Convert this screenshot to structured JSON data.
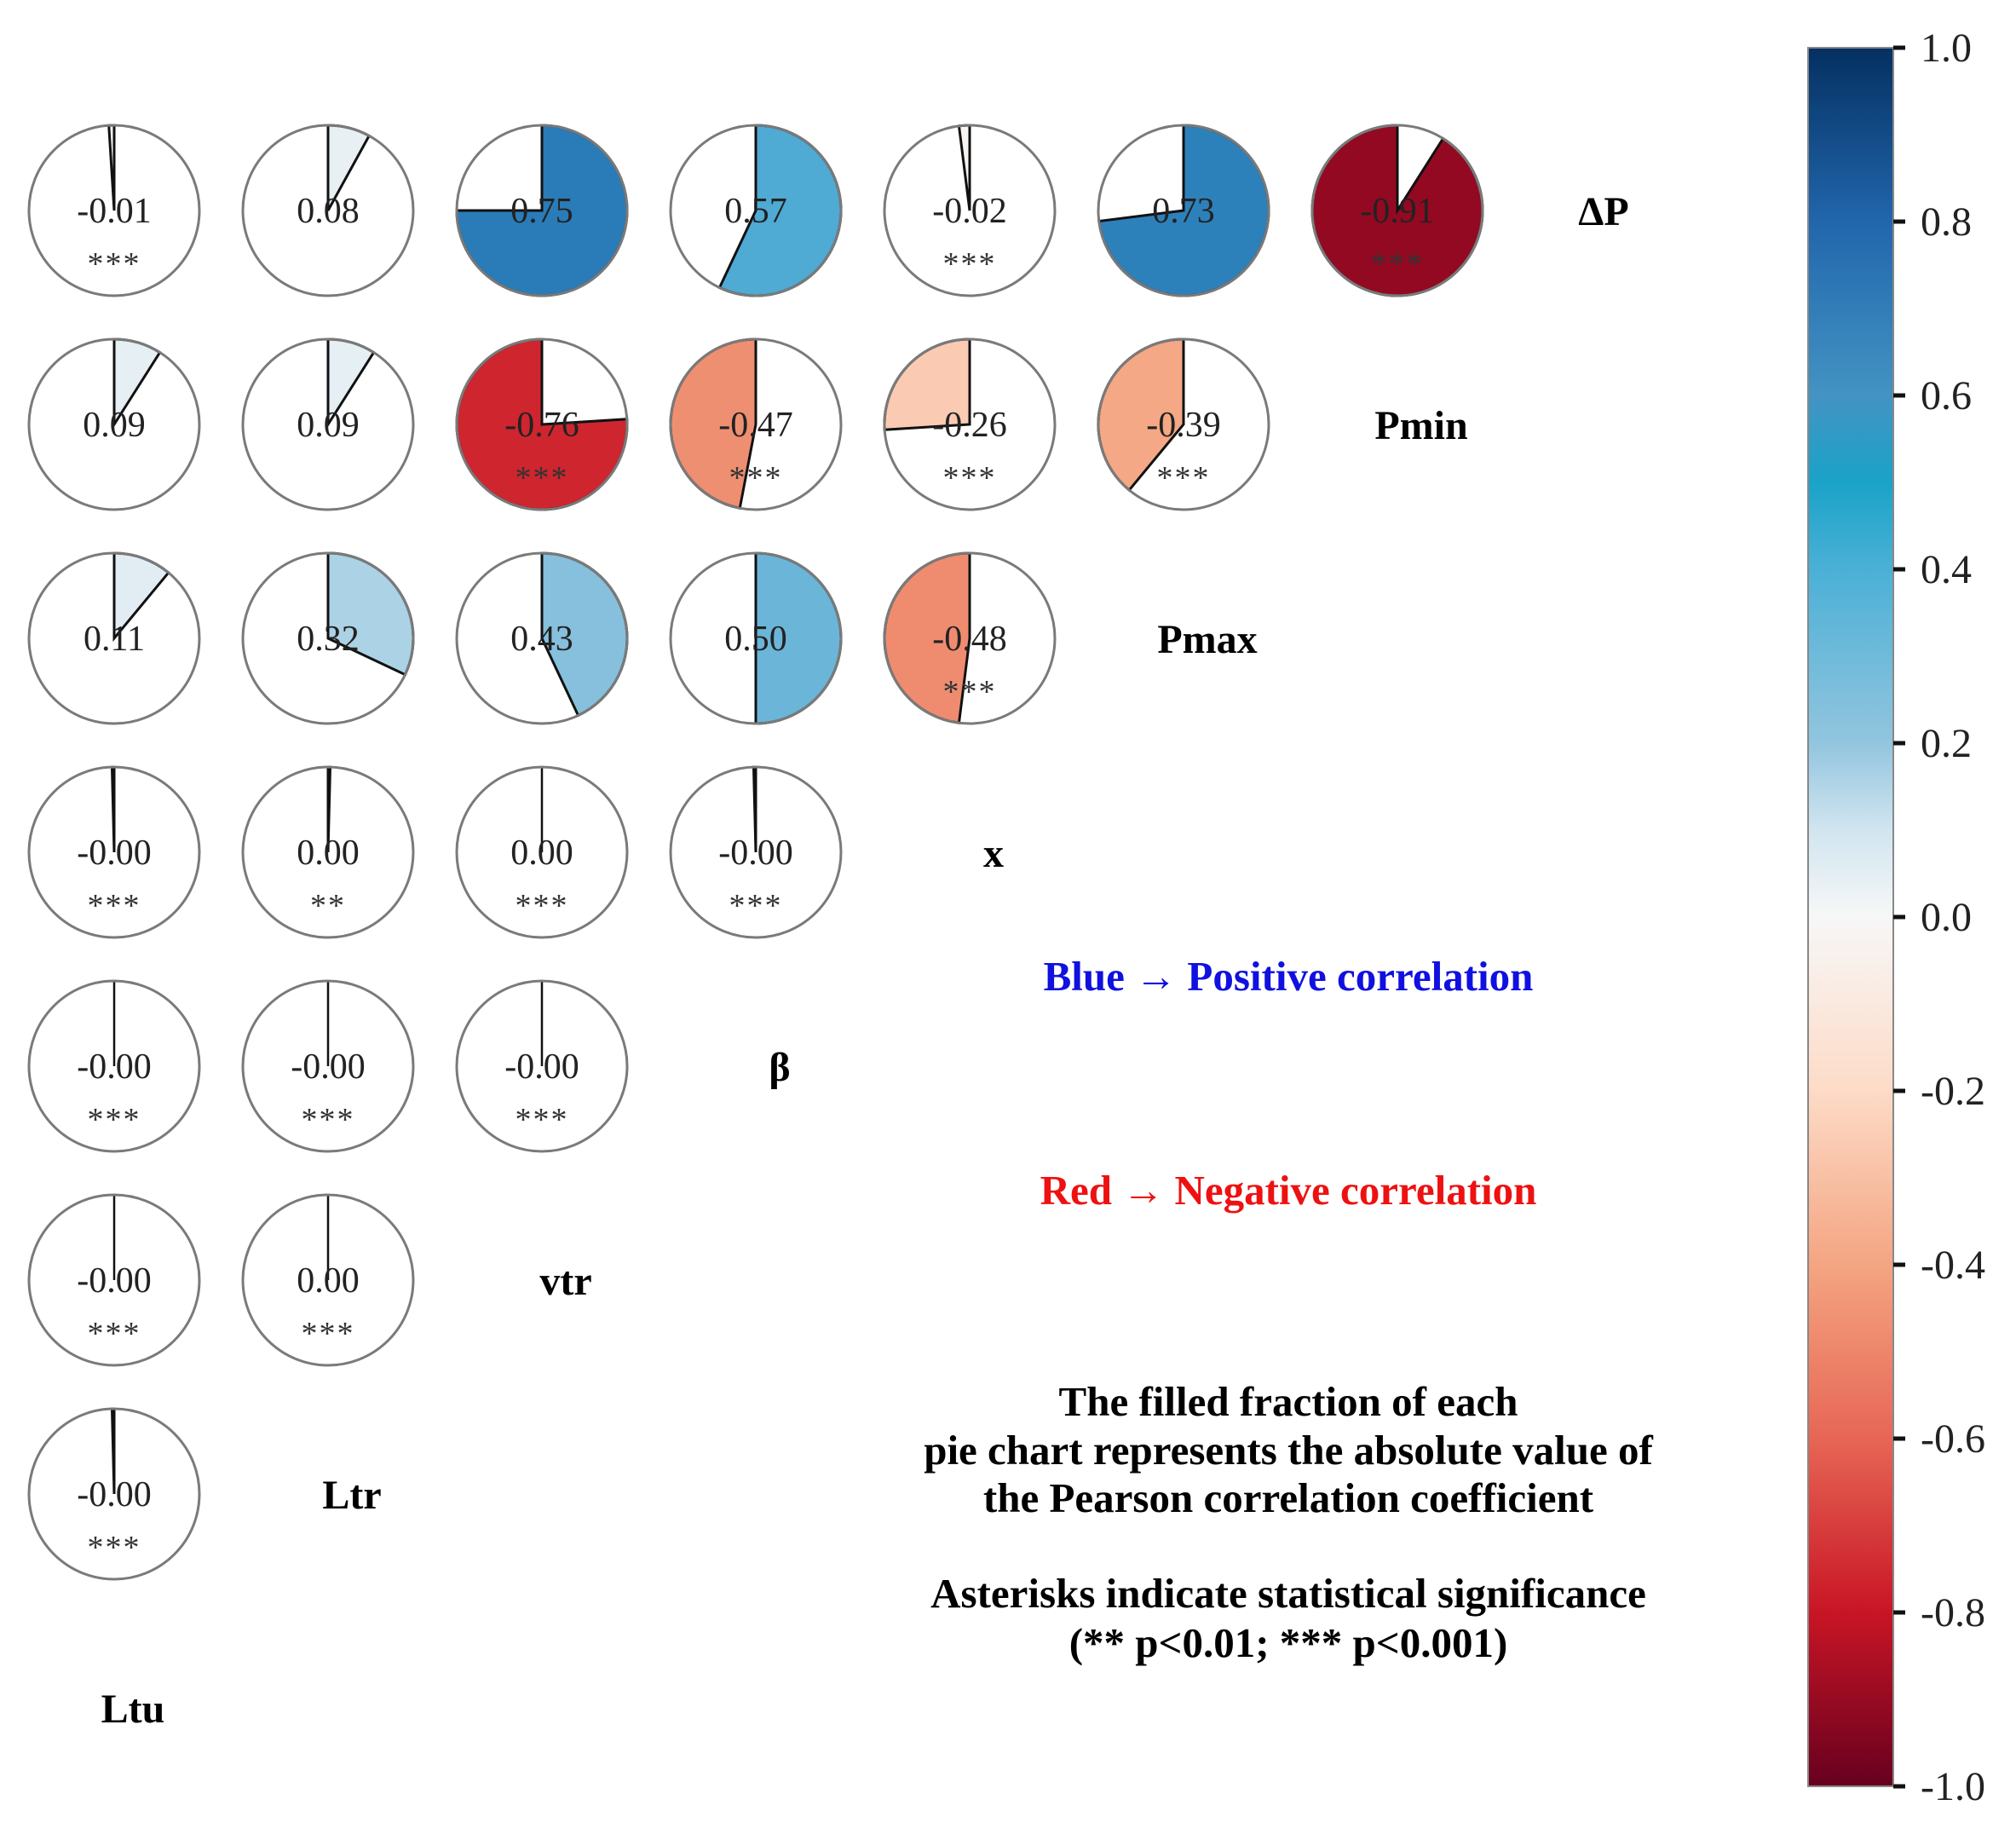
{
  "chart_data": {
    "type": "pie-correlation-matrix",
    "variables": [
      "Ltu",
      "Ltr",
      "vtr",
      "β",
      "x",
      "Pmax",
      "Pmin",
      "ΔP"
    ],
    "rows": [
      {
        "label": "ΔP",
        "cells": [
          {
            "col": "Ltu",
            "value": -0.01,
            "label": "-0.01",
            "sig": "***"
          },
          {
            "col": "Ltr",
            "value": 0.08,
            "label": "0.08",
            "sig": ""
          },
          {
            "col": "vtr",
            "value": 0.75,
            "label": "0.75",
            "sig": ""
          },
          {
            "col": "β",
            "value": 0.57,
            "label": "0.57",
            "sig": ""
          },
          {
            "col": "x",
            "value": -0.02,
            "label": "-0.02",
            "sig": "***"
          },
          {
            "col": "Pmax",
            "value": 0.73,
            "label": "0.73",
            "sig": ""
          },
          {
            "col": "Pmin",
            "value": -0.91,
            "label": "-0.91",
            "sig": "***"
          }
        ]
      },
      {
        "label": "Pmin",
        "cells": [
          {
            "col": "Ltu",
            "value": 0.09,
            "label": "0.09",
            "sig": ""
          },
          {
            "col": "Ltr",
            "value": 0.09,
            "label": "0.09",
            "sig": ""
          },
          {
            "col": "vtr",
            "value": -0.76,
            "label": "-0.76",
            "sig": "***"
          },
          {
            "col": "β",
            "value": -0.47,
            "label": "-0.47",
            "sig": "***"
          },
          {
            "col": "x",
            "value": -0.26,
            "label": "-0.26",
            "sig": "***"
          },
          {
            "col": "Pmax",
            "value": -0.39,
            "label": "-0.39",
            "sig": "***"
          }
        ]
      },
      {
        "label": "Pmax",
        "cells": [
          {
            "col": "Ltu",
            "value": 0.11,
            "label": "0.11",
            "sig": ""
          },
          {
            "col": "Ltr",
            "value": 0.32,
            "label": "0.32",
            "sig": ""
          },
          {
            "col": "vtr",
            "value": 0.43,
            "label": "0.43",
            "sig": ""
          },
          {
            "col": "β",
            "value": 0.5,
            "label": "0.50",
            "sig": ""
          },
          {
            "col": "x",
            "value": -0.48,
            "label": "-0.48",
            "sig": "***"
          }
        ]
      },
      {
        "label": "x",
        "cells": [
          {
            "col": "Ltu",
            "value": -0.004,
            "label": "-0.00",
            "sig": "***"
          },
          {
            "col": "Ltr",
            "value": 0.004,
            "label": "0.00",
            "sig": "**"
          },
          {
            "col": "vtr",
            "value": 0.0,
            "label": "0.00",
            "sig": "***"
          },
          {
            "col": "β",
            "value": -0.004,
            "label": "-0.00",
            "sig": "***"
          }
        ]
      },
      {
        "label": "β",
        "cells": [
          {
            "col": "Ltu",
            "value": 0.0,
            "label": "-0.00",
            "sig": "***"
          },
          {
            "col": "Ltr",
            "value": 0.0,
            "label": "-0.00",
            "sig": "***"
          },
          {
            "col": "vtr",
            "value": 0.0,
            "label": "-0.00",
            "sig": "***"
          }
        ]
      },
      {
        "label": "vtr",
        "cells": [
          {
            "col": "Ltu",
            "value": 0.0,
            "label": "-0.00",
            "sig": "***"
          },
          {
            "col": "Ltr",
            "value": 0.0,
            "label": "0.00",
            "sig": "***"
          }
        ]
      },
      {
        "label": "Ltr",
        "cells": [
          {
            "col": "Ltu",
            "value": -0.004,
            "label": "-0.00",
            "sig": "***"
          }
        ]
      },
      {
        "label": "Ltu",
        "cells": []
      }
    ],
    "colorbar": {
      "min": -1.0,
      "max": 1.0,
      "ticks": [
        "1.0",
        "0.8",
        "0.6",
        "0.4",
        "0.2",
        "0.0",
        "-0.2",
        "-0.4",
        "-0.6",
        "-0.8",
        "-1.0"
      ],
      "colormap": "RdBu"
    }
  },
  "annotations": {
    "positive": "Blue → Positive correlation",
    "negative": "Red → Negative correlation",
    "description_lines": [
      "The filled fraction of each",
      "pie chart represents the absolute value of",
      "the Pearson correlation coefficient"
    ],
    "significance_lines": [
      "Asterisks indicate statistical significance",
      "(** p<0.01; *** p<0.001)"
    ]
  },
  "colors": {
    "positive_text": "#1010e0",
    "negative_text": "#ee1111",
    "pie_outline": "#7a7a7a"
  }
}
